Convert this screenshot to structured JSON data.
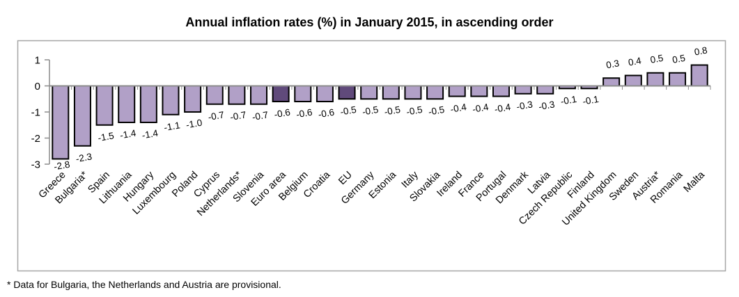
{
  "chart_data": {
    "type": "bar",
    "title": "Annual inflation rates (%) in January 2015, in ascending order",
    "categories": [
      "Greece",
      "Bulgaria*",
      "Spain",
      "Lithuania",
      "Hungary",
      "Luxembourg",
      "Poland",
      "Cyprus",
      "Netherlands*",
      "Slovenia",
      "Euro area",
      "Belgium",
      "Croatia",
      "EU",
      "Germany",
      "Estonia",
      "Italy",
      "Slovakia",
      "Ireland",
      "France",
      "Portugal",
      "Denmark",
      "Latvia",
      "Czech Republic",
      "Finland",
      "United Kingdom",
      "Sweden",
      "Austria*",
      "Romania",
      "Malta"
    ],
    "values": [
      -2.8,
      -2.3,
      -1.5,
      -1.4,
      -1.4,
      -1.1,
      -1.0,
      -0.7,
      -0.7,
      -0.7,
      -0.6,
      -0.6,
      -0.6,
      -0.5,
      -0.5,
      -0.5,
      -0.5,
      -0.5,
      -0.4,
      -0.4,
      -0.4,
      -0.3,
      -0.3,
      -0.1,
      -0.1,
      0.3,
      0.4,
      0.5,
      0.5,
      0.8
    ],
    "data_labels": [
      "-2.8",
      "-2.3",
      "-1.5",
      "-1.4",
      "-1.4",
      "-1.1",
      "-1.0",
      "-0.7",
      "-0.7",
      "-0.7",
      "-0.6",
      "-0.6",
      "-0.6",
      "-0.5",
      "-0.5",
      "-0.5",
      "-0.5",
      "-0.5",
      "-0.4",
      "-0.4",
      "-0.4",
      "-0.3",
      "-0.3",
      "-0.1",
      "-0.1",
      "0.3",
      "0.4",
      "0.5",
      "0.5",
      "0.8"
    ],
    "highlighted_categories": [
      "Euro area",
      "EU"
    ],
    "xlabel": "",
    "ylabel": "",
    "ylim": [
      -3,
      1
    ],
    "y_ticks": [
      1,
      0,
      -1,
      -2,
      -3
    ],
    "y_tick_labels": [
      "1",
      "0",
      "-1",
      "-2",
      "-3"
    ],
    "grid": "off",
    "legend": "none",
    "colors": {
      "bar_fill": "#b1a0c7",
      "bar_fill_highlight": "#604a7b",
      "bar_border": "#000000",
      "axis_line": "#8c8c8c",
      "chart_border": "#a6a6a6",
      "text": "#000000",
      "background": "#ffffff"
    },
    "footnote": "* Data for Bulgaria, the Netherlands and Austria are provisional."
  }
}
